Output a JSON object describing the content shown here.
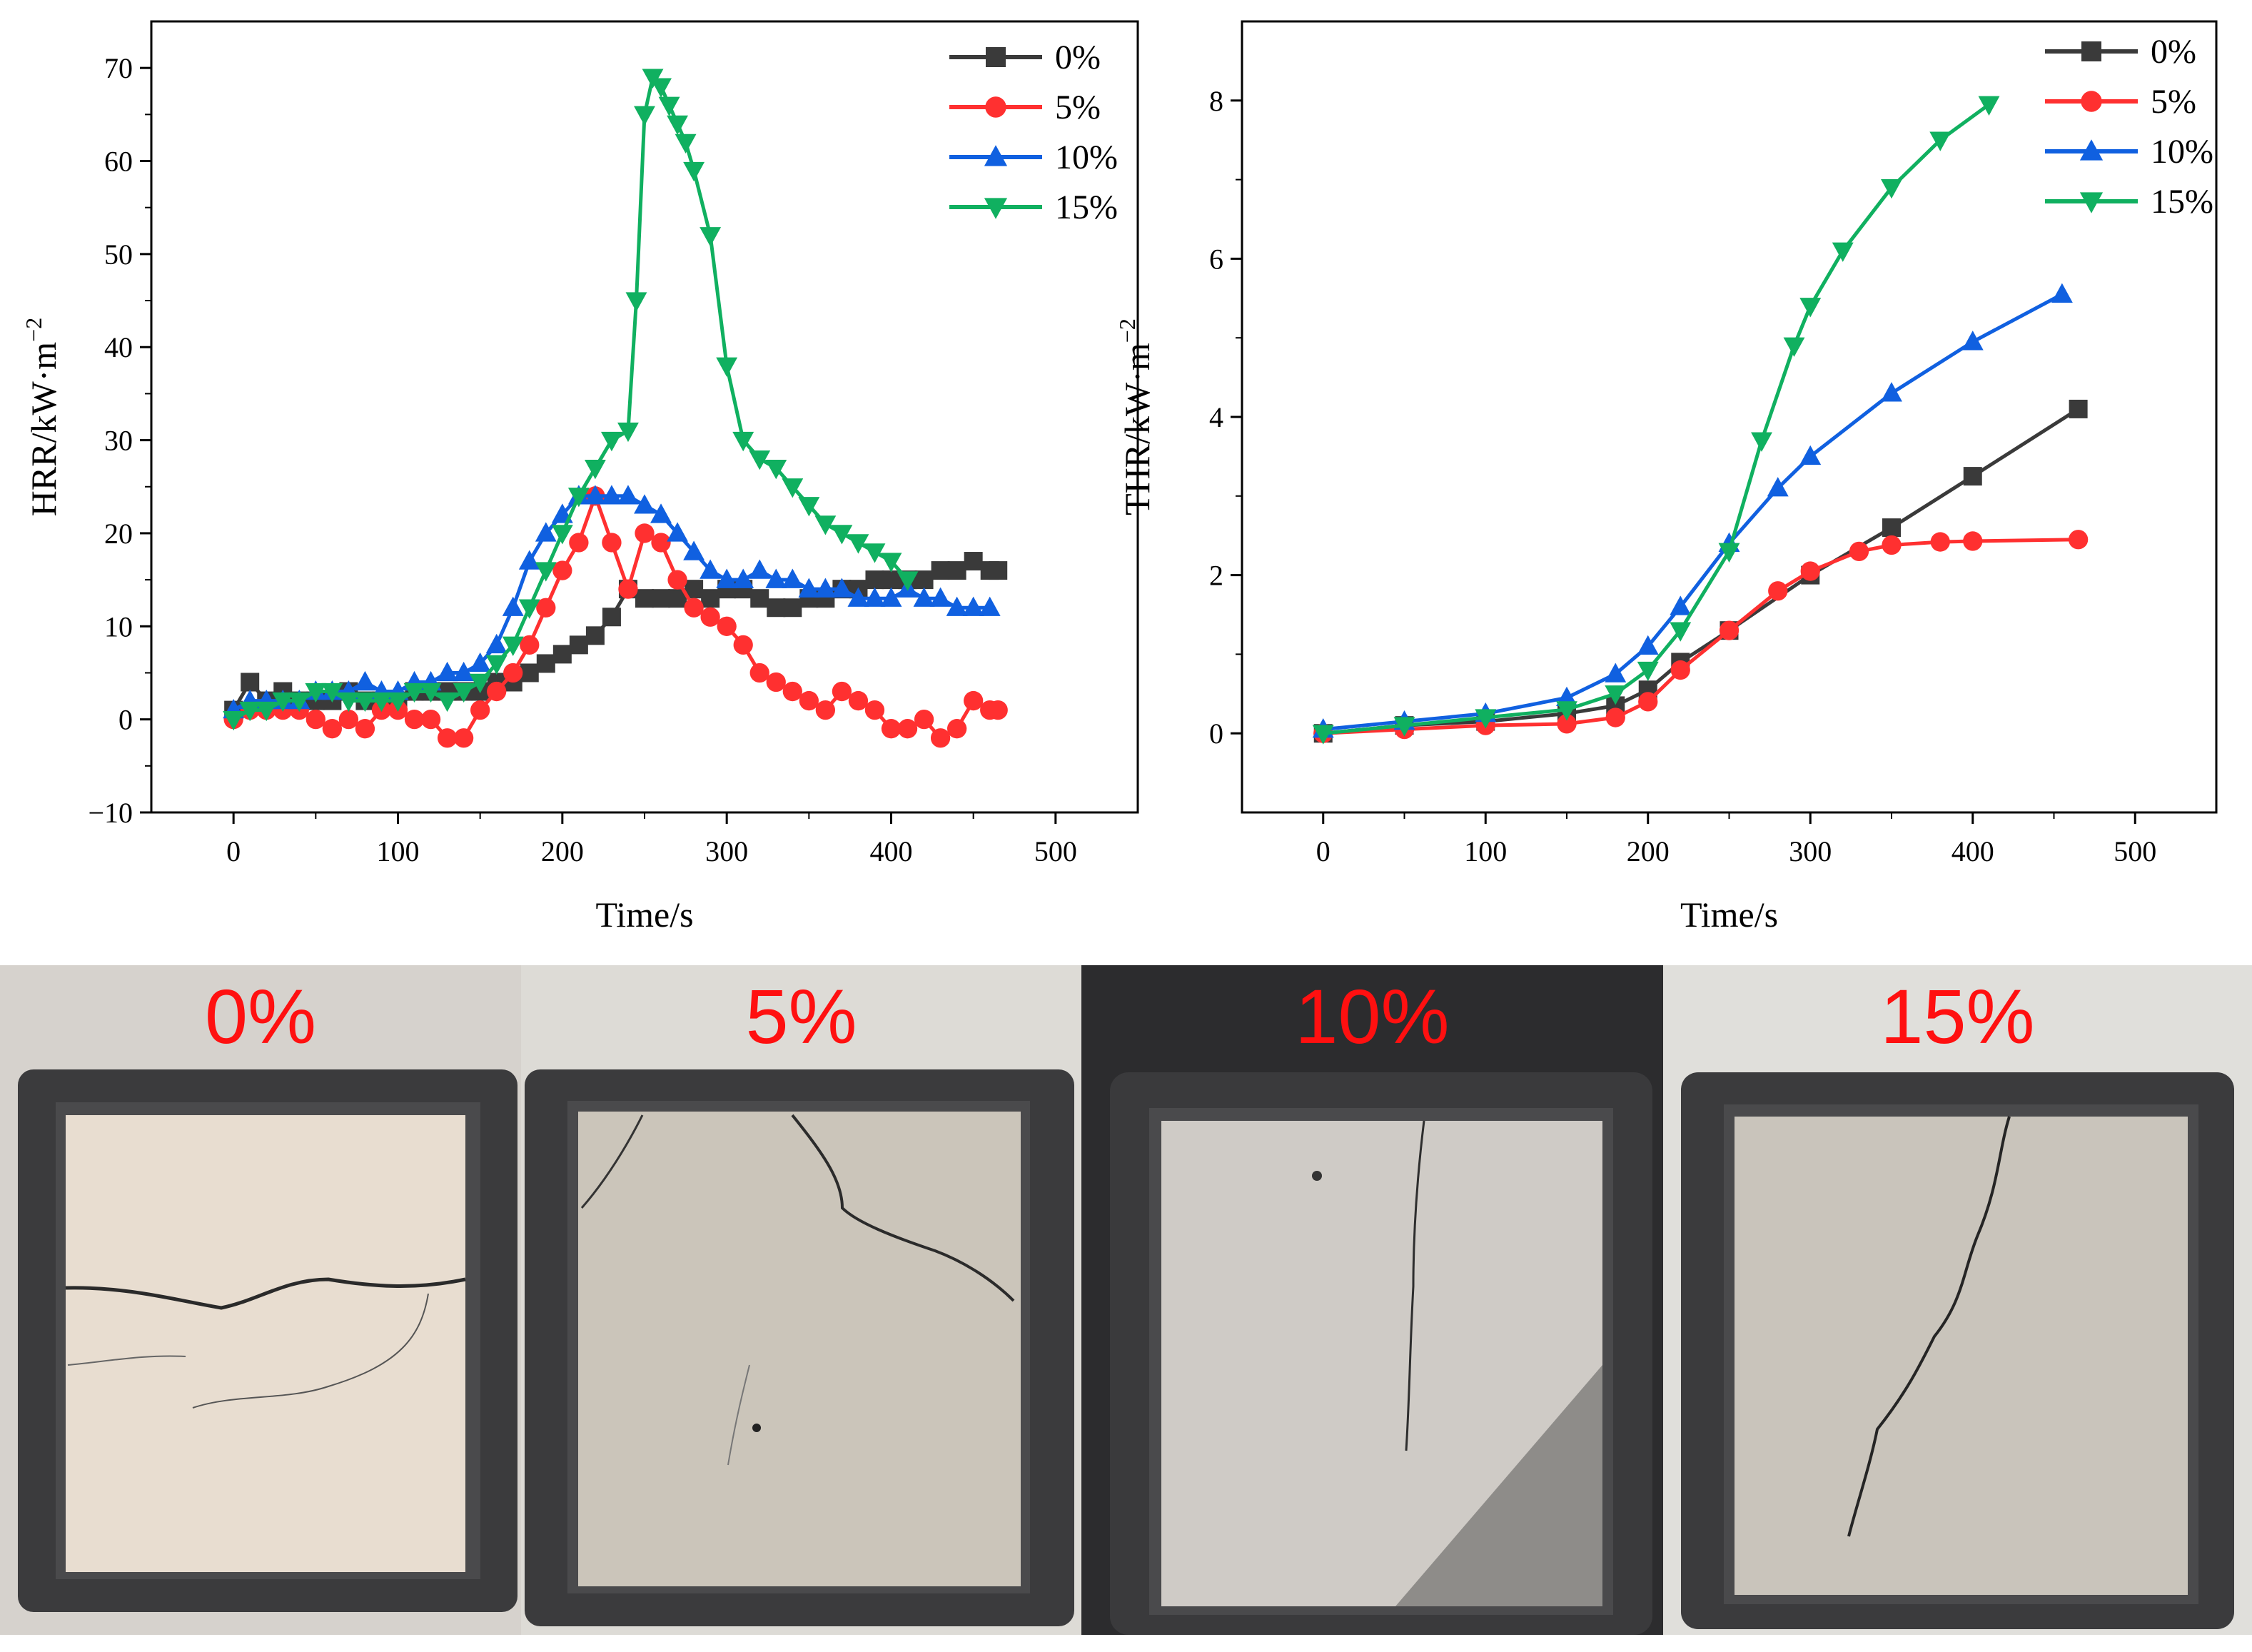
{
  "chart_data": [
    {
      "type": "line",
      "ylabel": "HRR/kW·m",
      "ylabel_sup": "−2",
      "xlabel": "Time/s",
      "xlim": [
        -50,
        550
      ],
      "ylim": [
        -10,
        75
      ],
      "xticks": [
        0,
        100,
        200,
        300,
        400,
        500
      ],
      "xtick_labels": [
        "0",
        "100",
        "200",
        "300",
        "400",
        "500"
      ],
      "yticks": [
        -10,
        0,
        10,
        20,
        30,
        40,
        50,
        60,
        70
      ],
      "ytick_labels": [
        "−10",
        "0",
        "10",
        "20",
        "30",
        "40",
        "50",
        "60",
        "70"
      ],
      "legend_position": "top-right",
      "series": [
        {
          "name": "0%",
          "color": "#3a3a3a",
          "marker": "square",
          "x": [
            0,
            10,
            20,
            30,
            40,
            50,
            60,
            70,
            80,
            90,
            100,
            110,
            120,
            130,
            140,
            150,
            160,
            170,
            180,
            190,
            200,
            210,
            220,
            230,
            240,
            250,
            260,
            270,
            280,
            290,
            300,
            310,
            320,
            330,
            340,
            350,
            360,
            370,
            380,
            390,
            400,
            410,
            420,
            430,
            440,
            450,
            460,
            465
          ],
          "y": [
            1,
            4,
            2,
            3,
            2,
            2,
            2,
            3,
            2,
            2,
            2,
            3,
            3,
            3,
            3,
            3,
            4,
            4,
            5,
            6,
            7,
            8,
            9,
            11,
            14,
            13,
            13,
            13,
            14,
            13,
            14,
            14,
            13,
            12,
            12,
            13,
            13,
            14,
            14,
            15,
            15,
            15,
            15,
            16,
            16,
            17,
            16,
            16
          ]
        },
        {
          "name": "5%",
          "color": "#ff3030",
          "marker": "circle",
          "x": [
            0,
            10,
            20,
            30,
            40,
            50,
            60,
            70,
            80,
            90,
            100,
            110,
            120,
            130,
            140,
            150,
            160,
            170,
            180,
            190,
            200,
            210,
            220,
            230,
            240,
            250,
            260,
            270,
            280,
            290,
            300,
            310,
            320,
            330,
            340,
            350,
            360,
            370,
            380,
            390,
            400,
            410,
            420,
            430,
            440,
            450,
            460,
            465
          ],
          "y": [
            0,
            1,
            1,
            1,
            1,
            0,
            -1,
            0,
            -1,
            1,
            1,
            0,
            0,
            -2,
            -2,
            1,
            3,
            5,
            8,
            12,
            16,
            19,
            24,
            19,
            14,
            20,
            19,
            15,
            12,
            11,
            10,
            8,
            5,
            4,
            3,
            2,
            1,
            3,
            2,
            1,
            -1,
            -1,
            0,
            -2,
            -1,
            2,
            1,
            1
          ]
        },
        {
          "name": "10%",
          "color": "#1060e0",
          "marker": "triangle-up",
          "x": [
            0,
            10,
            20,
            30,
            40,
            50,
            60,
            70,
            80,
            90,
            100,
            110,
            120,
            130,
            140,
            150,
            160,
            170,
            180,
            190,
            200,
            210,
            220,
            230,
            240,
            250,
            260,
            270,
            280,
            290,
            300,
            310,
            320,
            330,
            340,
            350,
            360,
            370,
            380,
            390,
            400,
            410,
            420,
            430,
            440,
            450,
            460
          ],
          "y": [
            1,
            2,
            2,
            2,
            2,
            3,
            3,
            3,
            4,
            3,
            3,
            4,
            4,
            5,
            5,
            6,
            8,
            12,
            17,
            20,
            22,
            24,
            24,
            24,
            24,
            23,
            22,
            20,
            18,
            16,
            15,
            15,
            16,
            15,
            15,
            14,
            14,
            14,
            13,
            13,
            13,
            14,
            13,
            13,
            12,
            12,
            12
          ]
        },
        {
          "name": "15%",
          "color": "#10b060",
          "marker": "triangle-down",
          "x": [
            0,
            10,
            20,
            30,
            40,
            50,
            60,
            70,
            80,
            90,
            100,
            110,
            120,
            130,
            140,
            150,
            160,
            170,
            180,
            190,
            200,
            210,
            220,
            230,
            240,
            245,
            250,
            255,
            260,
            265,
            270,
            275,
            280,
            290,
            300,
            310,
            320,
            330,
            340,
            350,
            360,
            370,
            380,
            390,
            400,
            410
          ],
          "y": [
            0,
            1,
            1,
            2,
            2,
            3,
            3,
            2,
            2,
            2,
            2,
            3,
            3,
            2,
            3,
            4,
            6,
            8,
            12,
            16,
            20,
            24,
            27,
            30,
            31,
            45,
            65,
            69,
            68,
            66,
            64,
            62,
            59,
            52,
            38,
            30,
            28,
            27,
            25,
            23,
            21,
            20,
            19,
            18,
            17,
            15
          ]
        }
      ]
    },
    {
      "type": "line",
      "ylabel": "THR/kW·m",
      "ylabel_sup": "−2",
      "xlabel": "Time/s",
      "xlim": [
        -50,
        550
      ],
      "ylim": [
        -1,
        9
      ],
      "xticks": [
        0,
        100,
        200,
        300,
        400,
        500
      ],
      "xtick_labels": [
        "0",
        "100",
        "200",
        "300",
        "400",
        "500"
      ],
      "yticks": [
        0,
        2,
        4,
        6,
        8
      ],
      "ytick_labels": [
        "0",
        "2",
        "4",
        "6",
        "8"
      ],
      "legend_position": "top-right",
      "series": [
        {
          "name": "0%",
          "color": "#3a3a3a",
          "marker": "square",
          "x": [
            0,
            50,
            100,
            150,
            180,
            200,
            220,
            250,
            300,
            350,
            400,
            465
          ],
          "y": [
            0,
            0.1,
            0.15,
            0.25,
            0.35,
            0.55,
            0.9,
            1.3,
            2.0,
            2.6,
            3.25,
            4.1
          ]
        },
        {
          "name": "5%",
          "color": "#ff3030",
          "marker": "circle",
          "x": [
            0,
            50,
            100,
            150,
            180,
            200,
            220,
            250,
            280,
            300,
            330,
            350,
            380,
            400,
            465
          ],
          "y": [
            0,
            0.05,
            0.1,
            0.12,
            0.2,
            0.4,
            0.8,
            1.3,
            1.8,
            2.05,
            2.3,
            2.38,
            2.42,
            2.43,
            2.45
          ]
        },
        {
          "name": "10%",
          "color": "#1060e0",
          "marker": "triangle-up",
          "x": [
            0,
            50,
            100,
            150,
            180,
            200,
            220,
            250,
            280,
            300,
            350,
            400,
            455
          ],
          "y": [
            0.05,
            0.15,
            0.25,
            0.45,
            0.75,
            1.1,
            1.6,
            2.4,
            3.1,
            3.5,
            4.3,
            4.95,
            5.55
          ]
        },
        {
          "name": "15%",
          "color": "#10b060",
          "marker": "triangle-down",
          "x": [
            0,
            50,
            100,
            150,
            180,
            200,
            220,
            250,
            270,
            290,
            300,
            320,
            350,
            380,
            410
          ],
          "y": [
            0,
            0.1,
            0.2,
            0.3,
            0.5,
            0.8,
            1.3,
            2.3,
            3.7,
            4.9,
            5.4,
            6.1,
            6.9,
            7.5,
            7.95
          ]
        }
      ]
    }
  ],
  "photos": [
    {
      "label": "0%"
    },
    {
      "label": "5%"
    },
    {
      "label": "10%"
    },
    {
      "label": "15%"
    }
  ]
}
